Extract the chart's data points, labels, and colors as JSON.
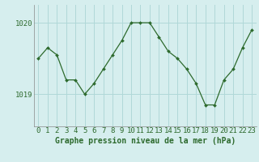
{
  "x": [
    0,
    1,
    2,
    3,
    4,
    5,
    6,
    7,
    8,
    9,
    10,
    11,
    12,
    13,
    14,
    15,
    16,
    17,
    18,
    19,
    20,
    21,
    22,
    23
  ],
  "y": [
    1019.5,
    1019.65,
    1019.55,
    1019.2,
    1019.2,
    1019.0,
    1019.15,
    1019.35,
    1019.55,
    1019.75,
    1020.0,
    1020.0,
    1020.0,
    1019.8,
    1019.6,
    1019.5,
    1019.35,
    1019.15,
    1018.85,
    1018.85,
    1019.2,
    1019.35,
    1019.65,
    1019.9
  ],
  "line_color": "#2d6a2d",
  "marker": "D",
  "marker_size": 2.0,
  "bg_color": "#d6eeee",
  "grid_color": "#b0d8d8",
  "xlabel": "Graphe pression niveau de la mer (hPa)",
  "xlabel_color": "#2d6a2d",
  "tick_color": "#2d6a2d",
  "ytick_labels": [
    "1019",
    "1020"
  ],
  "ytick_vals": [
    1019.0,
    1020.0
  ],
  "ylim": [
    1018.55,
    1020.25
  ],
  "xlim": [
    -0.5,
    23.5
  ],
  "font_size": 6.5,
  "xlabel_fontsize": 7.0
}
